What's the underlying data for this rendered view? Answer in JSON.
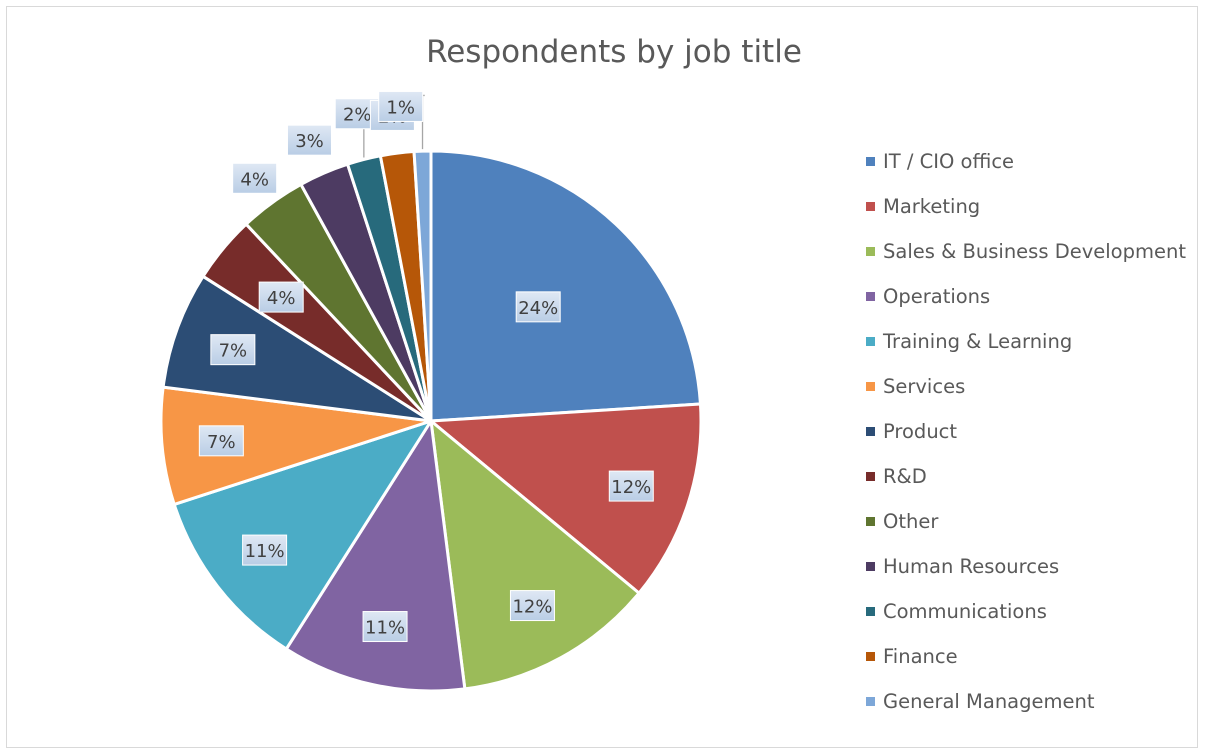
{
  "chart_data": {
    "type": "pie",
    "title": "Respondents by job title",
    "legend_position": "right",
    "start_angle_deg": 0,
    "direction": "clockwise",
    "slices": [
      {
        "label": "IT / CIO office",
        "value": 24,
        "display": "24%",
        "color": "#4f81bd"
      },
      {
        "label": "Marketing",
        "value": 12,
        "display": "12%",
        "color": "#c0504d"
      },
      {
        "label": "Sales & Business Development",
        "value": 12,
        "display": "12%",
        "color": "#9bbb59"
      },
      {
        "label": "Operations",
        "value": 11,
        "display": "11%",
        "color": "#8064a2"
      },
      {
        "label": "Training & Learning",
        "value": 11,
        "display": "11%",
        "color": "#4bacc6"
      },
      {
        "label": "Services",
        "value": 7,
        "display": "7%",
        "color": "#f79646"
      },
      {
        "label": "Product",
        "value": 7,
        "display": "7%",
        "color": "#2c4d75"
      },
      {
        "label": "R&D",
        "value": 4,
        "display": "4%",
        "color": "#772c2a"
      },
      {
        "label": "Other",
        "value": 4,
        "display": "4%",
        "color": "#5f7530"
      },
      {
        "label": "Human Resources",
        "value": 3,
        "display": "3%",
        "color": "#4d3b62"
      },
      {
        "label": "Communications",
        "value": 2,
        "display": "2%",
        "color": "#276a7c"
      },
      {
        "label": "Finance",
        "value": 2,
        "display": "2%",
        "color": "#b65708"
      },
      {
        "label": "General Management",
        "value": 1,
        "display": "1%",
        "color": "#7da7d8"
      }
    ]
  }
}
